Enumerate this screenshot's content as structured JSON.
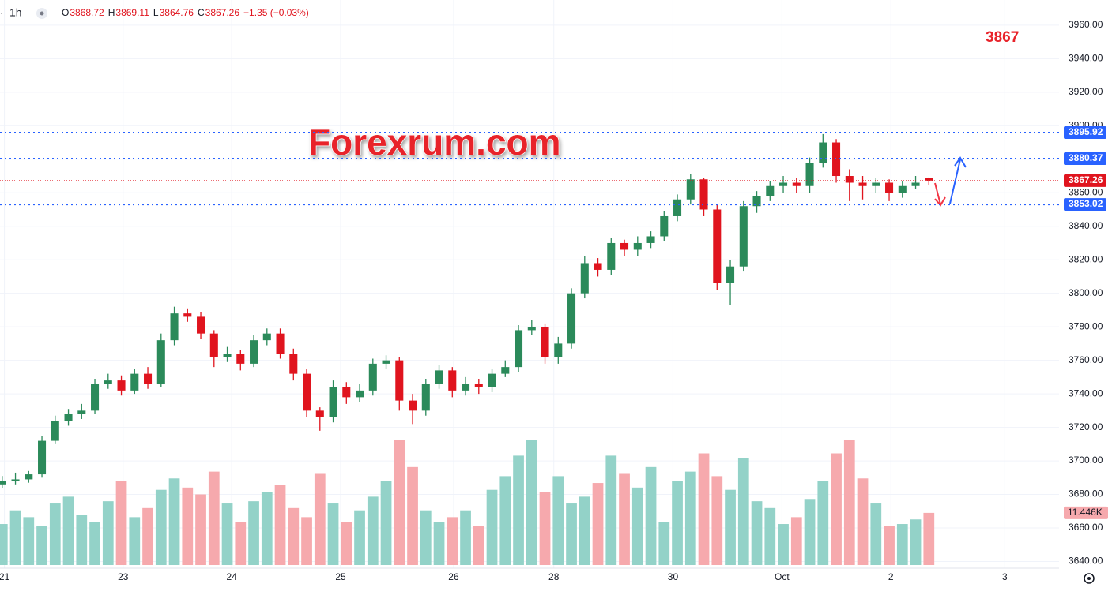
{
  "chart_data": {
    "type": "candlestick",
    "header": {
      "interval": "1h",
      "fields": [
        {
          "label": "O",
          "value": 3868.72
        },
        {
          "label": "H",
          "value": 3869.11
        },
        {
          "label": "L",
          "value": 3864.76
        },
        {
          "label": "C",
          "value": 3867.26
        }
      ],
      "change": "−1.35 (−0.03%)"
    },
    "watermark": "Forexrum.com",
    "annotation": "3867",
    "x": [
      0,
      3,
      6,
      9,
      12,
      15,
      18,
      21,
      24,
      27,
      30,
      33,
      36,
      39,
      42,
      45,
      48,
      51,
      54,
      57,
      60,
      63,
      66,
      69,
      72,
      75,
      78,
      81,
      84,
      87,
      90,
      93,
      96,
      99,
      102,
      105,
      108,
      111,
      114,
      117,
      120,
      123,
      126,
      129,
      132,
      135,
      138,
      141,
      144,
      147,
      150,
      153,
      156,
      159,
      162,
      165,
      168,
      171,
      174,
      177,
      180,
      183,
      186,
      189,
      192,
      195,
      198,
      201,
      204,
      207,
      210
    ],
    "open": [
      3686,
      3688,
      3689,
      3692,
      3712,
      3724,
      3728,
      3730,
      3746,
      3748,
      3742,
      3752,
      3746,
      3772,
      3788,
      3786,
      3776,
      3762,
      3764,
      3758,
      3772,
      3776,
      3764,
      3752,
      3730,
      3726,
      3744,
      3738,
      3742,
      3758,
      3760,
      3736,
      3730,
      3746,
      3754,
      3742,
      3746,
      3744,
      3752,
      3756,
      3778,
      3780,
      3762,
      3770,
      3800,
      3818,
      3814,
      3830,
      3826,
      3830,
      3834,
      3846,
      3856,
      3868,
      3850,
      3806,
      3816,
      3852,
      3858,
      3864,
      3866,
      3864,
      3878,
      3890,
      3870,
      3866,
      3864,
      3866,
      3860,
      3864,
      3868.72
    ],
    "high": [
      3691,
      3693,
      3694,
      3715,
      3727,
      3731,
      3734,
      3749,
      3752,
      3751,
      3755,
      3756,
      3776,
      3792,
      3791,
      3789,
      3778,
      3768,
      3766,
      3775,
      3779,
      3779,
      3767,
      3755,
      3732,
      3748,
      3747,
      3746,
      3761,
      3763,
      3762,
      3740,
      3749,
      3757,
      3756,
      3750,
      3749,
      3755,
      3760,
      3781,
      3784,
      3782,
      3774,
      3803,
      3822,
      3821,
      3833,
      3832,
      3834,
      3837,
      3849,
      3859,
      3871,
      3869,
      3853,
      3820,
      3855,
      3861,
      3867,
      3870,
      3869,
      3881,
      3895,
      3892,
      3874,
      3870,
      3869,
      3868,
      3867,
      3870,
      3869.11
    ],
    "low": [
      3684,
      3686,
      3687,
      3690,
      3710,
      3721,
      3725,
      3728,
      3743,
      3739,
      3740,
      3743,
      3744,
      3769,
      3783,
      3773,
      3756,
      3759,
      3754,
      3756,
      3769,
      3761,
      3748,
      3726,
      3718,
      3723,
      3734,
      3735,
      3739,
      3755,
      3730,
      3722,
      3727,
      3743,
      3738,
      3739,
      3740,
      3741,
      3750,
      3753,
      3775,
      3758,
      3758,
      3767,
      3797,
      3810,
      3811,
      3822,
      3822,
      3827,
      3831,
      3843,
      3853,
      3846,
      3802,
      3793,
      3813,
      3848,
      3855,
      3860,
      3860,
      3860,
      3875,
      3866,
      3855,
      3856,
      3860,
      3855,
      3857,
      3862,
      3864.76
    ],
    "close": [
      3688,
      3689,
      3692,
      3712,
      3724,
      3728,
      3730,
      3746,
      3748,
      3742,
      3752,
      3746,
      3772,
      3788,
      3786,
      3776,
      3762,
      3764,
      3758,
      3772,
      3776,
      3764,
      3752,
      3730,
      3726,
      3744,
      3738,
      3742,
      3758,
      3760,
      3736,
      3730,
      3746,
      3754,
      3742,
      3746,
      3744,
      3752,
      3756,
      3778,
      3780,
      3762,
      3770,
      3800,
      3818,
      3814,
      3830,
      3826,
      3830,
      3834,
      3846,
      3856,
      3868,
      3850,
      3806,
      3816,
      3852,
      3858,
      3864,
      3866,
      3864,
      3878,
      3890,
      3870,
      3866,
      3864,
      3866,
      3860,
      3864,
      3866,
      3867.26
    ],
    "up_color": "#2b8a5a",
    "down_color": "#e0141e",
    "volume": {
      "values": [
        9000,
        12000,
        10500,
        8500,
        13500,
        15000,
        11000,
        9500,
        14000,
        18500,
        10500,
        12500,
        16500,
        19000,
        17000,
        15500,
        20500,
        13500,
        9500,
        14000,
        16000,
        17500,
        12500,
        10500,
        20000,
        13500,
        9500,
        12000,
        15000,
        18500,
        27500,
        21500,
        12000,
        9500,
        10500,
        12000,
        8500,
        16500,
        19500,
        24000,
        27500,
        16000,
        19500,
        13500,
        15000,
        18000,
        24000,
        20000,
        17000,
        21500,
        9500,
        18500,
        20500,
        24500,
        19500,
        16500,
        23500,
        14000,
        12500,
        9000,
        10500,
        14500,
        18500,
        24500,
        27500,
        19000,
        13500,
        8500,
        9000,
        10000,
        11446
      ],
      "ylim": [
        0,
        40000
      ],
      "up_color": "#93d2c8",
      "down_color": "#f6a9ad",
      "last_label": "11.446K"
    },
    "xlim": [
      -0.5,
      239.5
    ],
    "xticks": [
      {
        "value": 0.5,
        "label": "21"
      },
      {
        "value": 27.4,
        "label": "23"
      },
      {
        "value": 52,
        "label": "24"
      },
      {
        "value": 76.7,
        "label": "25"
      },
      {
        "value": 102.3,
        "label": "26"
      },
      {
        "value": 125,
        "label": "28"
      },
      {
        "value": 152,
        "label": "30"
      },
      {
        "value": 176.7,
        "label": "Oct"
      },
      {
        "value": 201.4,
        "label": "2"
      },
      {
        "value": 227.2,
        "label": "3"
      }
    ],
    "ylim": [
      3636,
      3975
    ],
    "yticks": [
      {
        "value": 3640,
        "label": "3640.00"
      },
      {
        "value": 3660,
        "label": "3660.00"
      },
      {
        "value": 3680,
        "label": "3680.00"
      },
      {
        "value": 3700,
        "label": "3700.00"
      },
      {
        "value": 3720,
        "label": "3720.00"
      },
      {
        "value": 3740,
        "label": "3740.00"
      },
      {
        "value": 3760,
        "label": "3760.00"
      },
      {
        "value": 3780,
        "label": "3780.00"
      },
      {
        "value": 3800,
        "label": "3800.00"
      },
      {
        "value": 3820,
        "label": "3820.00"
      },
      {
        "value": 3840,
        "label": "3840.00"
      },
      {
        "value": 3860,
        "label": "3860.00"
      },
      {
        "value": 3880,
        "label": "3880.00"
      },
      {
        "value": 3900,
        "label": "3900.00"
      },
      {
        "value": 3920,
        "label": "3920.00"
      },
      {
        "value": 3940,
        "label": "3940.00"
      },
      {
        "value": 3960,
        "label": "3960.00"
      }
    ],
    "grid": true,
    "levels": [
      {
        "value": 3895.92,
        "color": "#2962ff",
        "style": "dotted"
      },
      {
        "value": 3880.37,
        "color": "#2962ff",
        "style": "dotted"
      },
      {
        "value": 3867.26,
        "color": "#e0141e",
        "style": "fine"
      },
      {
        "value": 3853.02,
        "color": "#2962ff",
        "style": "dotted"
      }
    ]
  }
}
